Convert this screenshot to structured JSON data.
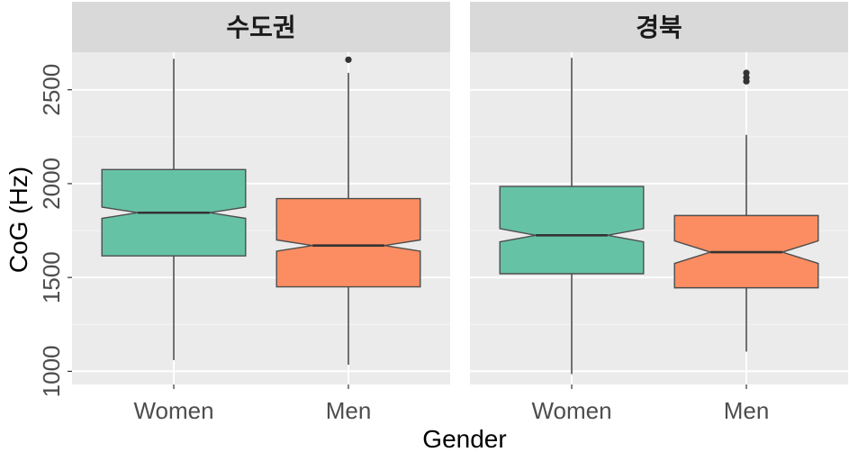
{
  "chart_data": {
    "type": "boxplot",
    "notched": true,
    "xlabel": "Gender",
    "ylabel": "CoG (Hz)",
    "ylim": [
      930,
      2700
    ],
    "yticks": [
      1000,
      1500,
      2000,
      2500
    ],
    "categories": [
      "Women",
      "Men"
    ],
    "colors": {
      "Women": "#66c2a5",
      "Men": "#fc8d62"
    },
    "panels": [
      {
        "title": "수도권",
        "boxes": [
          {
            "category": "Women",
            "whisker_low": 1060,
            "q1": 1615,
            "median": 1845,
            "q3": 2075,
            "whisker_high": 2665,
            "notch_low": 1815,
            "notch_high": 1875,
            "outliers": []
          },
          {
            "category": "Men",
            "whisker_low": 1035,
            "q1": 1450,
            "median": 1670,
            "q3": 1920,
            "whisker_high": 2590,
            "notch_low": 1640,
            "notch_high": 1700,
            "outliers": [
              2660
            ]
          }
        ]
      },
      {
        "title": "경북",
        "boxes": [
          {
            "category": "Women",
            "whisker_low": 985,
            "q1": 1520,
            "median": 1725,
            "q3": 1985,
            "whisker_high": 2670,
            "notch_low": 1690,
            "notch_high": 1760,
            "outliers": []
          },
          {
            "category": "Men",
            "whisker_low": 1105,
            "q1": 1445,
            "median": 1635,
            "q3": 1830,
            "whisker_high": 2260,
            "notch_low": 1575,
            "notch_high": 1695,
            "outliers": [
              2545,
              2565,
              2590
            ]
          }
        ]
      }
    ]
  }
}
